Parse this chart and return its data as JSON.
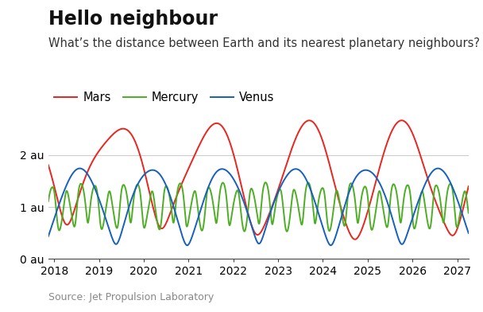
{
  "title": "Hello neighbour",
  "subtitle": "What’s the distance between Earth and its nearest planetary neighbours?",
  "source": "Source: Jet Propulsion Laboratory",
  "yticks": [
    0,
    1,
    2
  ],
  "ytick_labels": [
    "0 au",
    "1 au",
    "2 au"
  ],
  "xlim_start": 2017.87,
  "xlim_end": 2027.25,
  "ylim": [
    0,
    2.82
  ],
  "xticks": [
    2018,
    2019,
    2020,
    2021,
    2022,
    2023,
    2024,
    2025,
    2026,
    2027
  ],
  "colors": {
    "Mars": "#e8251f",
    "Mercury": "#4caf23",
    "Venus": "#1560bd"
  },
  "background": "#ffffff",
  "grid_color": "#cccccc",
  "title_fontsize": 17,
  "subtitle_fontsize": 10.5,
  "axis_fontsize": 10,
  "source_fontsize": 9
}
